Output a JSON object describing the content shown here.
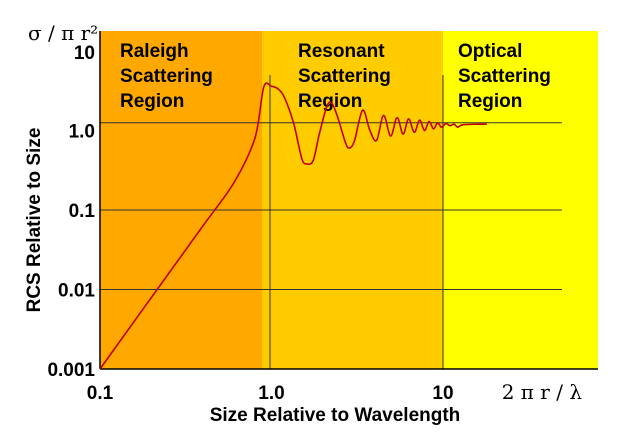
{
  "chart_data": {
    "type": "line",
    "xlabel": "Size Relative to Wavelength",
    "ylabel": "RCS Relative to Size",
    "x_unit_label": "2 π r / λ",
    "y_unit_label": "σ / π r²",
    "x_scale": "log",
    "y_scale": "log",
    "xlim": [
      0.1,
      30
    ],
    "ylim": [
      0.001,
      30
    ],
    "x_ticks": [
      "0.1",
      "1.0",
      "10"
    ],
    "y_ticks": [
      "0.001",
      "0.01",
      "0.1",
      "1.0",
      "10"
    ],
    "grid": true,
    "regions": [
      {
        "name": "Raleigh Scattering Region",
        "lines": [
          "Raleigh",
          "Scattering",
          "Region"
        ],
        "x_range": [
          0.1,
          0.9
        ],
        "color": "#FFA800"
      },
      {
        "name": "Resonant Scattering Region",
        "lines": [
          "Resonant",
          "Scattering",
          "Region"
        ],
        "x_range": [
          0.9,
          10
        ],
        "color": "#FFCC00"
      },
      {
        "name": "Optical Scattering Region",
        "lines": [
          "Optical",
          "Scattering",
          "Region"
        ],
        "x_range": [
          10,
          30
        ],
        "color": "#FFFF00"
      }
    ],
    "series": [
      {
        "color": "#C00000",
        "points": [
          [
            0.1,
            0.001
          ],
          [
            0.2,
            0.008
          ],
          [
            0.4,
            0.064
          ],
          [
            0.6,
            0.216
          ],
          [
            0.8,
            0.8
          ],
          [
            0.9,
            3.5
          ],
          [
            1.0,
            3.6
          ],
          [
            1.1,
            3.3
          ],
          [
            1.2,
            2.5
          ],
          [
            1.35,
            1.2
          ],
          [
            1.5,
            0.45
          ],
          [
            1.6,
            0.38
          ],
          [
            1.75,
            0.42
          ],
          [
            1.9,
            0.9
          ],
          [
            2.1,
            2.0
          ],
          [
            2.25,
            2.2
          ],
          [
            2.45,
            1.4
          ],
          [
            2.7,
            0.7
          ],
          [
            2.85,
            0.6
          ],
          [
            3.05,
            0.75
          ],
          [
            3.4,
            1.8
          ],
          [
            3.75,
            1.0
          ],
          [
            4.1,
            0.75
          ],
          [
            4.5,
            1.55
          ],
          [
            4.95,
            0.85
          ],
          [
            5.4,
            1.45
          ],
          [
            5.85,
            0.9
          ],
          [
            6.3,
            1.4
          ],
          [
            6.8,
            0.95
          ],
          [
            7.3,
            1.35
          ],
          [
            7.8,
            1.0
          ],
          [
            8.3,
            1.3
          ],
          [
            8.8,
            1.05
          ],
          [
            9.3,
            1.25
          ],
          [
            9.8,
            1.1
          ],
          [
            10.4,
            1.22
          ],
          [
            11.0,
            1.15
          ],
          [
            11.6,
            1.2
          ],
          [
            12.2,
            1.1
          ],
          [
            13,
            1.18
          ],
          [
            16,
            1.2
          ],
          [
            18,
            1.2
          ]
        ]
      }
    ],
    "reference_lines": [
      {
        "orientation": "horizontal",
        "y": 1.25
      },
      {
        "orientation": "vertical",
        "x": 0.9
      }
    ]
  }
}
